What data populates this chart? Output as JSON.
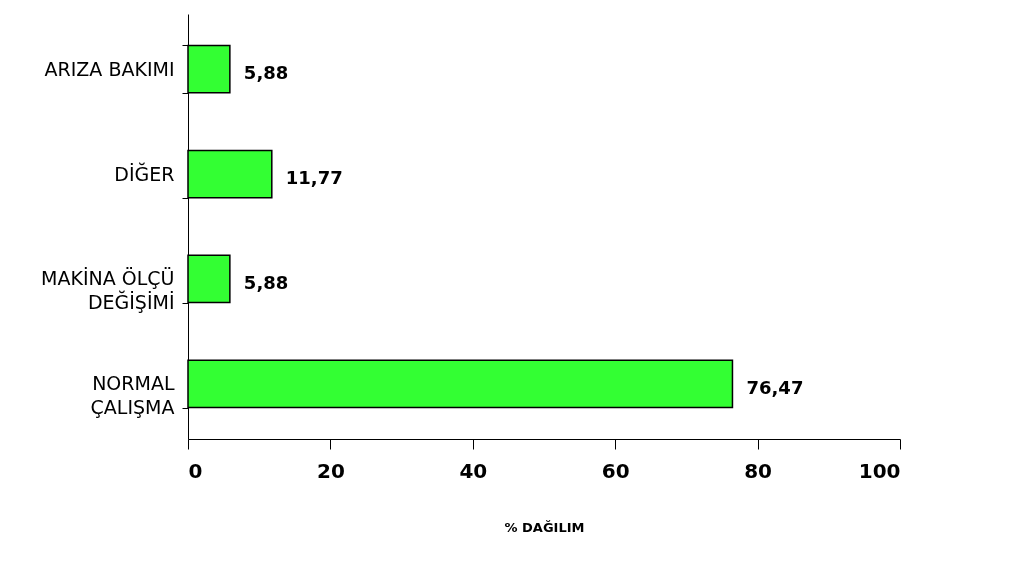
{
  "chart_data": {
    "type": "bar",
    "orientation": "horizontal",
    "categories": [
      "ARIZA BAKIMI",
      "DİĞER",
      "MAKİNA ÖLÇÜ DEĞİŞİMİ",
      "NORMAL ÇALIŞMA"
    ],
    "values": [
      5.88,
      11.77,
      5.88,
      76.47
    ],
    "value_labels": [
      "5,88",
      "11,77",
      "5,88",
      "76,47"
    ],
    "color": "#33ff33",
    "xlim": [
      0,
      100
    ],
    "xticks": [
      0,
      20,
      40,
      60,
      80,
      100
    ],
    "xlabel": "% DAĞILIM",
    "grid": false
  }
}
